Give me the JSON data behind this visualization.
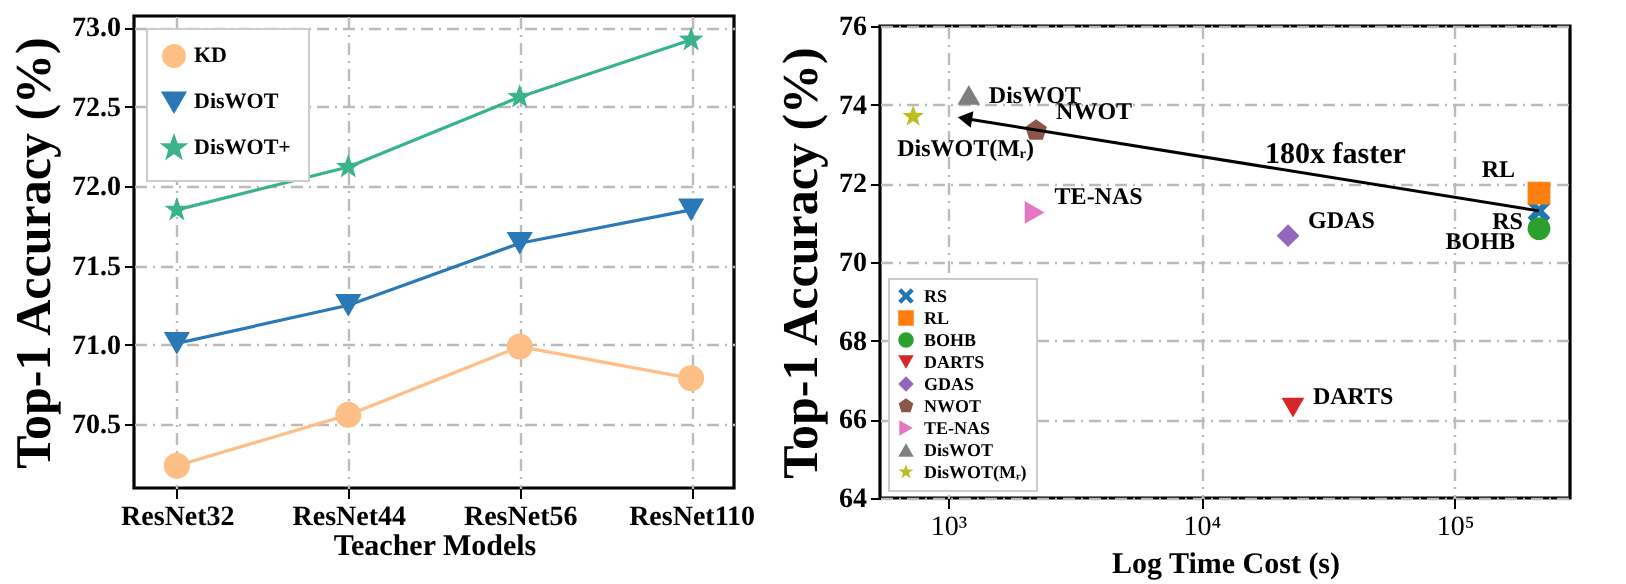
{
  "chart_data": [
    {
      "type": "line",
      "xlabel": "Teacher Models",
      "ylabel": "Top-1 Accuracy (%)",
      "categories": [
        "ResNet32",
        "ResNet44",
        "ResNet56",
        "ResNet110"
      ],
      "series": [
        {
          "name": "KD",
          "color": "#fdbf86",
          "marker": "circle",
          "values": [
            70.24,
            70.56,
            70.99,
            70.79
          ]
        },
        {
          "name": "DisWOT",
          "color": "#2a78b5",
          "marker": "triangle-down",
          "values": [
            71.01,
            71.25,
            71.64,
            71.85
          ]
        },
        {
          "name": "DisWOT+",
          "color": "#3bb38a",
          "marker": "star",
          "values": [
            71.85,
            72.12,
            72.56,
            72.92
          ]
        }
      ],
      "ylim": [
        70.1,
        73.07
      ],
      "yticks": [
        70.5,
        {
          "value": 71,
          "label": "71.0"
        },
        71.5,
        {
          "value": 72,
          "label": "72.0"
        },
        72.5,
        {
          "value": 73,
          "label": "73.0"
        }
      ],
      "grid": true,
      "legend": "top left"
    },
    {
      "type": "scatter",
      "xlabel": "Log Time Cost (s)",
      "ylabel": "Top-1 Accuracy (%)",
      "log": "x",
      "series": [
        {
          "name": "RS",
          "color": "#1f77b4",
          "marker": "cross",
          "x": [
            215000
          ],
          "values": [
            71.3
          ]
        },
        {
          "name": "RL",
          "color": "#ff7f0e",
          "marker": "square",
          "x": [
            215000
          ],
          "values": [
            71.75
          ]
        },
        {
          "name": "BOHB",
          "color": "#2ca02c",
          "marker": "circle",
          "x": [
            215000
          ],
          "values": [
            70.85
          ]
        },
        {
          "name": "DARTS",
          "color": "#d62728",
          "marker": "triangle-down",
          "x": [
            23000
          ],
          "values": [
            66.3
          ]
        },
        {
          "name": "GDAS",
          "color": "#9467bd",
          "marker": "diamond",
          "x": [
            22000
          ],
          "values": [
            70.67
          ]
        },
        {
          "name": "NWOT",
          "color": "#8c564b",
          "x": [
            2230
          ],
          "values": [
            73.34
          ]
        },
        {
          "name": "TE-NAS",
          "color": "#e377c2",
          "marker": "triangle-right",
          "x": [
            2200
          ],
          "values": [
            71.26
          ]
        },
        {
          "name": "DisWOT",
          "color": "#7f7f7f",
          "marker": "triangle",
          "x": [
            1210
          ],
          "values": [
            74.25
          ]
        },
        {
          "name": "DisWOT(Mᵣ)",
          "color": "#bcbd22",
          "marker": "star",
          "x": [
            730
          ],
          "values": [
            73.7
          ]
        }
      ],
      "xlim": [
        540,
        285000
      ],
      "xticks": [
        {
          "value": 1000,
          "label": "10³"
        },
        {
          "value": 10000,
          "label": "10⁴"
        },
        {
          "value": 100000,
          "label": "10⁵"
        }
      ],
      "ylim": [
        64,
        76
      ],
      "yticks": [
        64,
        66,
        68,
        70,
        72,
        74,
        76
      ],
      "annotations": [
        "180x faster"
      ],
      "grid": true,
      "legend": "bottom left"
    }
  ]
}
